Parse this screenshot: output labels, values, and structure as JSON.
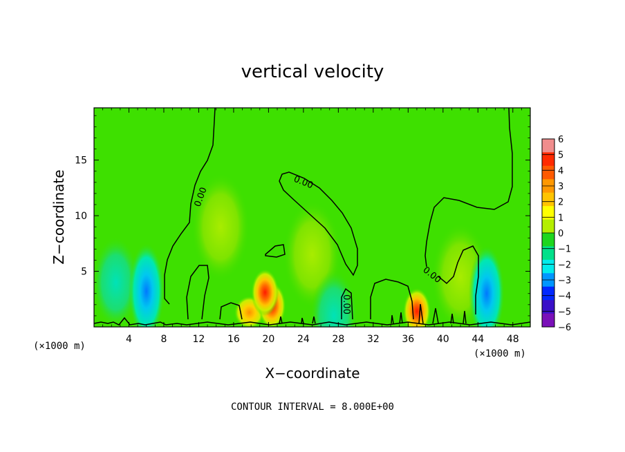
{
  "chart_data": {
    "type": "heatmap",
    "title": "vertical velocity",
    "xlabel": "X−coordinate",
    "ylabel": "Z−coordinate",
    "x_unit_left": "(×1000 m)",
    "x_unit_right": "(×1000 m)",
    "xlim": [
      0,
      50
    ],
    "ylim": [
      0,
      19.7
    ],
    "x_ticks": [
      4,
      8,
      12,
      16,
      20,
      24,
      28,
      32,
      36,
      40,
      44,
      48
    ],
    "y_ticks": [
      5,
      10,
      15
    ],
    "note": "CONTOUR INTERVAL = 8.000E+00",
    "contour_label": "0.00",
    "colorbar": {
      "levels": [
        6,
        5,
        4,
        3,
        2,
        1,
        0,
        -1,
        -2,
        -3,
        -4,
        -5,
        -6
      ],
      "labels": [
        "6",
        "5",
        "4",
        "3",
        "2",
        "1",
        "0",
        "−1",
        "−2",
        "−3",
        "−4",
        "−5",
        "−6"
      ],
      "colors": [
        "#f08d8d",
        "#ff2a00",
        "#ff5a00",
        "#ff9800",
        "#ffc400",
        "#ffff00",
        "#b4ee00",
        "#1ed61e",
        "#00e08a",
        "#00ecec",
        "#0096ff",
        "#0028ff",
        "#3a10c8",
        "#7a10b8"
      ]
    },
    "features": [
      {
        "type": "updraft",
        "x": 19.6,
        "z": 3.1,
        "value": 4.8
      },
      {
        "type": "updraft",
        "x": 20.4,
        "z": 1.9,
        "value": 4.0
      },
      {
        "type": "updraft",
        "x": 17.8,
        "z": 1.3,
        "value": 2.6
      },
      {
        "type": "updraft",
        "x": 37.0,
        "z": 1.4,
        "value": 4.6
      },
      {
        "type": "updraft",
        "x": 42.0,
        "z": 4.5,
        "value": 1.4
      },
      {
        "type": "downdraft",
        "x": 6.0,
        "z": 3.2,
        "value": -3.0
      },
      {
        "type": "downdraft",
        "x": 45.0,
        "z": 3.0,
        "value": -3.6
      },
      {
        "type": "downdraft",
        "x": 2.5,
        "z": 4.0,
        "value": -1.5
      },
      {
        "type": "downdraft",
        "x": 27.5,
        "z": 1.0,
        "value": -2.0
      },
      {
        "type": "weak_updraft",
        "x": 14.5,
        "z": 9.0,
        "value": 0.7
      },
      {
        "type": "weak_updraft",
        "x": 25.0,
        "z": 6.5,
        "value": 0.9
      }
    ]
  }
}
